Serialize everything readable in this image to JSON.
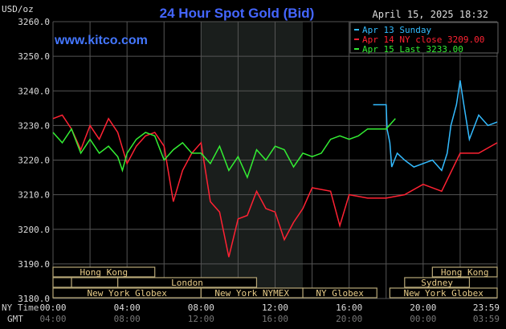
{
  "chart_data": {
    "type": "line",
    "title": "24 Hour Spot Gold (Bid)",
    "ylabel": "USD/oz",
    "website": "www.kitco.com",
    "timestamp": "April 15, 2025 18:32",
    "ylim": [
      3180,
      3260
    ],
    "xlim": [
      0,
      24
    ],
    "y_ticks": [
      "3260.0",
      "3250.0",
      "3240.0",
      "3230.0",
      "3220.0",
      "3210.0",
      "3200.0",
      "3190.0",
      "3180.0"
    ],
    "x_row_labels": {
      "ny": "NY Time",
      "gmt": "GMT"
    },
    "x_ticks_ny": [
      "00:00",
      "04:00",
      "08:00",
      "12:00",
      "16:00",
      "20:00",
      "23:59"
    ],
    "x_ticks_gmt": [
      "04:00",
      "08:00",
      "12:00",
      "16:00",
      "20:00",
      "00:00",
      "03:59"
    ],
    "grid": true,
    "legend_position": "top-right",
    "series": [
      {
        "name": "Apr 13 Sunday",
        "color": "#33bbff",
        "x": [
          17.3,
          18.0,
          18.05,
          18.2,
          18.3,
          18.6,
          19.0,
          19.5,
          20.0,
          20.5,
          21.0,
          21.3,
          21.5,
          21.8,
          22.0,
          22.2,
          22.5,
          23.0,
          23.5,
          24.0
        ],
        "y": [
          3236,
          3236,
          3229,
          3225,
          3218,
          3222,
          3220,
          3218,
          3219,
          3220,
          3217,
          3222,
          3230,
          3236,
          3243,
          3236,
          3226,
          3233,
          3230,
          3231
        ]
      },
      {
        "name": "Apr 14 NY close 3209.00",
        "color": "#ff2233",
        "x": [
          0,
          0.5,
          1,
          1.5,
          2,
          2.5,
          3,
          3.5,
          4,
          4.5,
          5,
          5.5,
          6,
          6.5,
          7,
          7.5,
          8,
          8.5,
          9,
          9.5,
          10,
          10.5,
          11,
          11.5,
          12,
          12.5,
          13,
          13.5,
          14,
          15,
          15.5,
          16,
          17,
          18,
          19,
          20,
          21,
          22,
          23,
          24
        ],
        "y": [
          3232,
          3233,
          3229,
          3223,
          3230,
          3226,
          3232,
          3228,
          3219,
          3224,
          3227,
          3228,
          3224,
          3208,
          3217,
          3222,
          3225,
          3208,
          3205,
          3192,
          3203,
          3204,
          3211,
          3206,
          3205,
          3197,
          3202,
          3206,
          3212,
          3211,
          3201,
          3210,
          3209,
          3209,
          3210,
          3213,
          3211,
          3222,
          3222,
          3225
        ]
      },
      {
        "name": "Apr 15 Last 3233.00",
        "color": "#33ee33",
        "x": [
          0,
          0.5,
          1,
          1.5,
          2,
          2.5,
          3,
          3.5,
          3.75,
          4,
          4.5,
          5,
          5.5,
          6,
          6.5,
          7,
          7.5,
          8,
          8.5,
          9,
          9.5,
          10,
          10.5,
          11,
          11.5,
          12,
          12.5,
          13,
          13.5,
          14,
          14.5,
          15,
          15.5,
          16,
          16.5,
          17,
          17.5,
          18,
          18.5
        ],
        "y": [
          3228,
          3225,
          3229,
          3222,
          3226,
          3222,
          3224,
          3221,
          3217,
          3222,
          3226,
          3228,
          3227,
          3220,
          3223,
          3225,
          3222,
          3222,
          3219,
          3224,
          3217,
          3221,
          3215,
          3223,
          3220,
          3224,
          3223,
          3218,
          3222,
          3221,
          3222,
          3226,
          3227,
          3226,
          3227,
          3229,
          3229,
          3229,
          3232
        ]
      }
    ],
    "sessions": [
      {
        "label": "Hong Kong",
        "row": 0,
        "start": 0,
        "end": 5.5
      },
      {
        "label": "Hong Kong",
        "row": 0,
        "start": 20.5,
        "end": 24
      },
      {
        "label": "",
        "row": 1,
        "start": 0,
        "end": 1
      },
      {
        "label": "",
        "row": 1,
        "start": 1,
        "end": 3.5
      },
      {
        "label": "London",
        "row": 1,
        "start": 3.5,
        "end": 11
      },
      {
        "label": "Sydney",
        "row": 1,
        "start": 19,
        "end": 22.5
      },
      {
        "label": "New York Globex",
        "row": 2,
        "start": 0,
        "end": 8
      },
      {
        "label": "New York NYMEX",
        "row": 2,
        "start": 8,
        "end": 13.5
      },
      {
        "label": "NY Globex",
        "row": 2,
        "start": 13.5,
        "end": 17.5
      },
      {
        "label": "New York Globex",
        "row": 2,
        "start": 18.2,
        "end": 24
      }
    ],
    "highlight_hours": [
      8,
      13.5
    ]
  }
}
